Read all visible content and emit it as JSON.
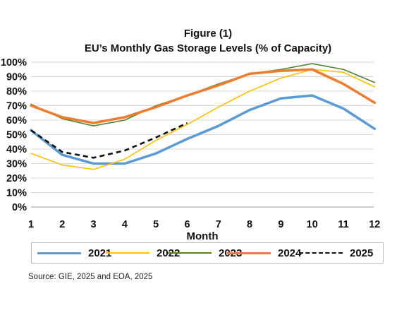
{
  "title_line1": "Figure (1)",
  "title_line2": "EU’s Monthly Gas Storage Levels (% of Capacity)",
  "source": "Source: GIE, 2025 and EOA, 2025",
  "chart_data": {
    "type": "line",
    "title": "EU’s Monthly Gas Storage Levels (% of Capacity)",
    "xlabel": "Month",
    "ylabel": "",
    "x": [
      1,
      2,
      3,
      4,
      5,
      6,
      7,
      8,
      9,
      10,
      11,
      12
    ],
    "ylim": [
      0,
      100
    ],
    "yticks": [
      "0%",
      "10%",
      "20%",
      "30%",
      "40%",
      "50%",
      "60%",
      "70%",
      "80%",
      "90%",
      "100%"
    ],
    "grid": true,
    "legend_position": "bottom",
    "series": [
      {
        "name": "2021",
        "color": "#5b9bd5",
        "width": 3.5,
        "dash": "none",
        "values": [
          53,
          36,
          30,
          30,
          37,
          47,
          56,
          67,
          75,
          77,
          68,
          54
        ]
      },
      {
        "name": "2022",
        "color": "#ffc000",
        "width": 1.6,
        "dash": "none",
        "values": [
          37,
          29,
          26,
          33,
          46,
          57,
          69,
          80,
          89,
          95,
          93,
          83
        ]
      },
      {
        "name": "2023",
        "color": "#548235",
        "width": 1.6,
        "dash": "none",
        "values": [
          71,
          61,
          56,
          60,
          70,
          77,
          85,
          92,
          95,
          99,
          95,
          86
        ]
      },
      {
        "name": "2024",
        "color": "#ed7d31",
        "width": 3.5,
        "dash": "none",
        "values": [
          70,
          62,
          58,
          62,
          69,
          77,
          84,
          92,
          94,
          95,
          85,
          72
        ]
      },
      {
        "name": "2025",
        "color": "#111111",
        "width": 2.6,
        "dash": "7,5",
        "values": [
          53,
          38,
          34,
          39,
          48,
          58,
          null,
          null,
          null,
          null,
          null,
          null
        ]
      }
    ]
  }
}
